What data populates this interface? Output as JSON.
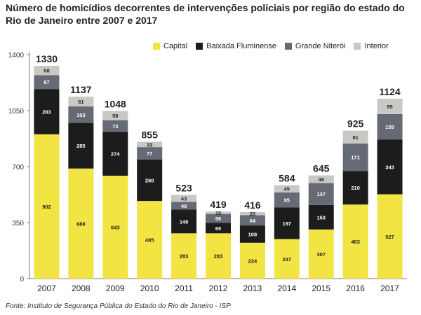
{
  "title": "Número de homicídios decorrentes de intervenções policiais por região do estado do Rio de Janeiro entre 2007 e 2017",
  "source": "Fonte: Instituto de Segurança Pública do Estado do Rio de Janeiro - ISP",
  "chart_data": {
    "type": "bar",
    "stacked": true,
    "categories": [
      "2007",
      "2008",
      "2009",
      "2010",
      "2011",
      "2012",
      "2013",
      "2014",
      "2015",
      "2016",
      "2017"
    ],
    "series": [
      {
        "name": "Capital",
        "color": "#f2e443",
        "values": [
          902,
          688,
          643,
          485,
          283,
          283,
          224,
          247,
          307,
          463,
          527
        ]
      },
      {
        "name": "Baixada Fluminense",
        "color": "#1c1c1c",
        "values": [
          283,
          285,
          274,
          260,
          148,
          65,
          108,
          197,
          153,
          210,
          343
        ]
      },
      {
        "name": "Grande Niterói",
        "color": "#666a75",
        "values": [
          87,
          103,
          73,
          77,
          49,
          56,
          64,
          95,
          137,
          171,
          159
        ]
      },
      {
        "name": "Interior",
        "color": "#c8c8c4",
        "values": [
          58,
          61,
          58,
          33,
          43,
          15,
          20,
          45,
          48,
          81,
          95
        ]
      }
    ],
    "totals": [
      1330,
      1137,
      1048,
      855,
      523,
      419,
      416,
      584,
      645,
      925,
      1124
    ],
    "yticks": [
      0,
      350,
      700,
      1050,
      1400
    ],
    "ylim": [
      0,
      1400
    ],
    "legend_position": "top-right",
    "grid": false
  }
}
